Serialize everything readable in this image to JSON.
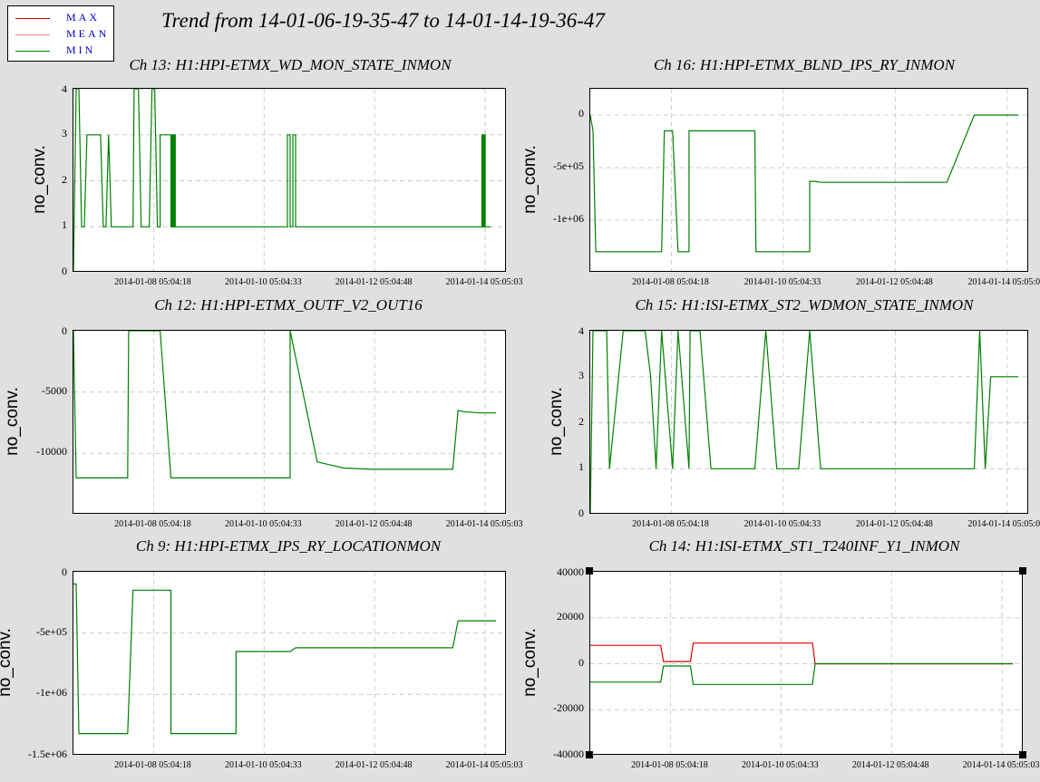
{
  "title": "Trend from 14-01-06-19-35-47 to 14-01-14-19-36-47",
  "legend": [
    {
      "label": "MAX",
      "color": "#e00000"
    },
    {
      "label": "MEAN",
      "color": "#f08080"
    },
    {
      "label": "MIN",
      "color": "#008000"
    }
  ],
  "colors": {
    "max": "#e00000",
    "mean": "#f08080",
    "min": "#008000",
    "background": "#e0e0e0"
  },
  "chart_data": [
    {
      "type": "line",
      "title": "Ch 13: H1:HPI-ETMX_WD_MON_STATE_INMON",
      "ylabel": "no_conv.",
      "ylim": [
        0,
        4
      ],
      "yticks": [
        "0",
        "1",
        "2",
        "3",
        "4"
      ],
      "xticks": [
        "2014-01-08 05:04:18",
        "2014-01-10 05:04:33",
        "2014-01-12 05:04:48",
        "2014-01-14 05:05:03"
      ],
      "grid": true,
      "series": [
        {
          "name": "MIN",
          "x": [
            0,
            0.05,
            0.1,
            0.15,
            0.2,
            0.25,
            0.5,
            0.55,
            0.6,
            0.65,
            0.7,
            0.75,
            0.8,
            0.85,
            0.9,
            0.92,
            0.95,
            1.0,
            1.05,
            1.1,
            1.12,
            1.15,
            1.2,
            1.25,
            1.3,
            1.35,
            1.4,
            1.45,
            1.5,
            1.55,
            1.6,
            1.6,
            1.8,
            1.8,
            1.82,
            1.82,
            1.84,
            1.84,
            1.86,
            1.86,
            1.88,
            1.88,
            2.5,
            2.5,
            3.0,
            3.5,
            3.95,
            3.95,
            4.0,
            4.0,
            4.05,
            4.05,
            4.1,
            4.1,
            4.5,
            4.5,
            5.0,
            5.5,
            6.0,
            6.5,
            7.0,
            7.5,
            7.54,
            7.54,
            7.56,
            7.56,
            7.58,
            7.58,
            7.6,
            7.6,
            7.65,
            7.65,
            7.7
          ],
          "y": [
            0,
            4,
            4,
            1,
            1,
            3,
            3,
            1,
            1,
            3,
            1,
            1,
            1,
            1,
            1,
            1,
            1,
            1,
            1,
            1,
            4,
            4,
            4,
            1,
            1,
            1,
            1,
            4,
            4,
            1,
            1,
            3,
            3,
            1,
            1,
            3,
            3,
            1,
            1,
            3,
            3,
            1,
            1,
            1,
            1,
            1,
            1,
            3,
            3,
            1,
            1,
            3,
            3,
            1,
            1,
            1,
            1,
            1,
            1,
            1,
            1,
            1,
            1,
            3,
            3,
            1,
            1,
            3,
            3,
            1,
            1,
            1,
            1
          ]
        }
      ]
    },
    {
      "type": "line",
      "title": "Ch 16: H1:HPI-ETMX_BLND_IPS_RY_INMON",
      "ylabel": "no_conv.",
      "ylim": [
        -1500000,
        250000
      ],
      "yticks": [
        "0",
        "-5e+05",
        "-1e+06"
      ],
      "xticks": [
        "2014-01-08 05:04:18",
        "2014-01-10 05:04:33",
        "2014-01-12 05:04:48",
        "2014-01-14 05:05:03"
      ],
      "grid": true,
      "series": [
        {
          "name": "MIN",
          "x": [
            0,
            0.05,
            0.1,
            0.3,
            0.6,
            1.0,
            1.2,
            1.3,
            1.35,
            1.4,
            1.5,
            1.6,
            1.75,
            1.8,
            1.8,
            1.9,
            2.0,
            2.0,
            2.2,
            2.3,
            2.4,
            2.5,
            2.6,
            2.7,
            2.8,
            2.9,
            3.0,
            3.02,
            3.02,
            3.05,
            3.05,
            3.07,
            3.1,
            3.15,
            3.2,
            3.25,
            3.3,
            3.35,
            3.4,
            4.0,
            4.0,
            4.05,
            4.1,
            4.2,
            4.25,
            4.3,
            4.4,
            4.5,
            4.6,
            4.8,
            5.0,
            5.3,
            5.6,
            6.0,
            6.5,
            7.0,
            7.1,
            7.15,
            7.2,
            7.25,
            7.3,
            7.8
          ],
          "y": [
            0,
            -150000,
            -1300000,
            -1300000,
            -1300000,
            -1300000,
            -1300000,
            -1300000,
            -150000,
            -150000,
            -150000,
            -1300000,
            -1300000,
            -1300000,
            -150000,
            -150000,
            -150000,
            -150000,
            -150000,
            -150000,
            -150000,
            -150000,
            -150000,
            -150000,
            -150000,
            -150000,
            -150000,
            -1300000,
            -1300000,
            -1300000,
            -1300000,
            -1300000,
            -1300000,
            -1300000,
            -1300000,
            -1300000,
            -1300000,
            -1300000,
            -1300000,
            -1300000,
            -630000,
            -630000,
            -630000,
            -640000,
            -640000,
            -640000,
            -640000,
            -640000,
            -640000,
            -640000,
            -640000,
            -640000,
            -640000,
            -640000,
            -640000,
            0,
            0,
            0,
            0,
            0,
            0,
            0
          ]
        }
      ]
    },
    {
      "type": "line",
      "title": "Ch 12: H1:HPI-ETMX_OUTF_V2_OUT16",
      "ylabel": "no_conv.",
      "ylim": [
        -15000,
        0
      ],
      "yticks": [
        "0",
        "-5000",
        "-10000"
      ],
      "xticks": [
        "2014-01-08 05:04:18",
        "2014-01-10 05:04:33",
        "2014-01-12 05:04:48",
        "2014-01-14 05:05:03"
      ],
      "grid": true,
      "series": [
        {
          "name": "MIN",
          "x": [
            0,
            0.05,
            0.1,
            0.3,
            0.6,
            1.0,
            1.02,
            1.05,
            1.1,
            1.2,
            1.4,
            1.5,
            1.6,
            1.8,
            1.8,
            2.0,
            2.5,
            3.0,
            3.5,
            4.0,
            4.0,
            4.5,
            5.0,
            5.5,
            6.0,
            6.5,
            7.0,
            7.1,
            7.2,
            7.5,
            7.8
          ],
          "y": [
            0,
            -12000,
            -12000,
            -12000,
            -12000,
            -12000,
            0,
            0,
            0,
            0,
            0,
            0,
            0,
            -12000,
            -12000,
            -12000,
            -12000,
            -12000,
            -12000,
            -12000,
            0,
            -10700,
            -11200,
            -11300,
            -11300,
            -11300,
            -11300,
            -6500,
            -6600,
            -6700,
            -6700
          ]
        }
      ]
    },
    {
      "type": "line",
      "title": "Ch 15: H1:ISI-ETMX_ST2_WDMON_STATE_INMON",
      "ylabel": "no_conv.",
      "ylim": [
        0,
        4
      ],
      "yticks": [
        "0",
        "1",
        "2",
        "3",
        "4"
      ],
      "xticks": [
        "2014-01-08 05:04:18",
        "2014-01-10 05:04:33",
        "2014-01-12 05:04:48",
        "2014-01-14 05:05:03"
      ],
      "grid": true,
      "series": [
        {
          "name": "MIN",
          "x": [
            0,
            0.05,
            0.3,
            0.35,
            0.6,
            1.0,
            1.1,
            1.2,
            1.3,
            1.5,
            1.6,
            1.8,
            1.82,
            2.0,
            2.2,
            2.4,
            2.6,
            2.8,
            3.0,
            3.2,
            3.4,
            3.6,
            3.8,
            4.0,
            4.2,
            4.4,
            4.6,
            5.0,
            5.5,
            6.0,
            6.5,
            7.0,
            7.1,
            7.2,
            7.3,
            7.5,
            7.8
          ],
          "y": [
            0,
            4,
            4,
            1,
            4,
            4,
            3,
            1,
            4,
            1,
            4,
            1,
            4,
            4,
            1,
            1,
            1,
            1,
            1,
            4,
            1,
            1,
            1,
            4,
            1,
            1,
            1,
            1,
            1,
            1,
            1,
            1,
            4,
            1,
            3,
            3,
            3
          ]
        }
      ]
    },
    {
      "type": "line",
      "title": "Ch 9: H1:HPI-ETMX_IPS_RY_LOCATIONMON",
      "ylabel": "no_conv.",
      "ylim": [
        -1500000,
        0
      ],
      "yticks": [
        "0",
        "-5e+05",
        "-1e+06",
        "-1.5e+06"
      ],
      "xticks": [
        "2014-01-08 05:04:18",
        "2014-01-10 05:04:33",
        "2014-01-12 05:04:48",
        "2014-01-14 05:05:03"
      ],
      "grid": true,
      "series": [
        {
          "name": "MIN",
          "x": [
            0,
            0.05,
            0.1,
            0.3,
            0.6,
            1.0,
            1.1,
            1.2,
            1.4,
            1.6,
            1.8,
            1.8,
            2.0,
            2.5,
            3.0,
            3.0,
            3.3,
            3.6,
            4.0,
            4.1,
            4.5,
            5.0,
            5.5,
            6.0,
            6.5,
            7.0,
            7.1,
            7.2,
            7.5,
            7.8
          ],
          "y": [
            -100000,
            -100000,
            -1320000,
            -1320000,
            -1320000,
            -1320000,
            -150000,
            -150000,
            -150000,
            -150000,
            -150000,
            -1320000,
            -1320000,
            -1320000,
            -1320000,
            -650000,
            -650000,
            -650000,
            -650000,
            -620000,
            -620000,
            -620000,
            -620000,
            -620000,
            -620000,
            -620000,
            -400000,
            -400000,
            -400000,
            -400000
          ]
        }
      ]
    },
    {
      "type": "line",
      "title": "Ch 14: H1:ISI-ETMX_ST1_T240INF_Y1_INMON",
      "ylabel": "no_conv.",
      "ylim": [
        -40000,
        40000
      ],
      "yticks": [
        "40000",
        "20000",
        "0",
        "-20000",
        "-40000"
      ],
      "xticks": [
        "2014-01-08 05:04:18",
        "2014-01-10 05:04:33",
        "2014-01-12 05:04:48",
        "2014-01-14 05:05:03"
      ],
      "grid": true,
      "series": [
        {
          "name": "MAX",
          "x": [
            0,
            1.3,
            1.35,
            1.85,
            1.9,
            4.1,
            4.15,
            7.8
          ],
          "y": [
            8000,
            8000,
            1000,
            1000,
            9000,
            9000,
            0,
            0
          ]
        },
        {
          "name": "MIN",
          "x": [
            0,
            1.3,
            1.35,
            1.85,
            1.9,
            4.1,
            4.15,
            7.8
          ],
          "y": [
            -8000,
            -8000,
            -1000,
            -1000,
            -9000,
            -9000,
            0,
            0
          ]
        }
      ]
    }
  ]
}
